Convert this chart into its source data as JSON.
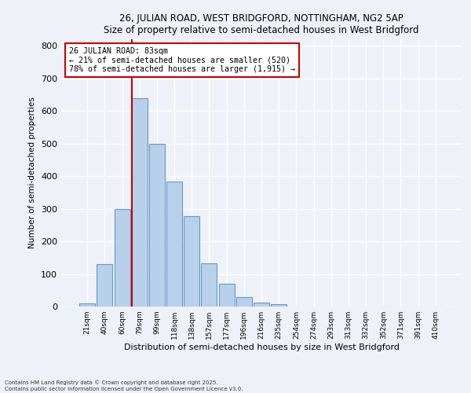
{
  "title": "26, JULIAN ROAD, WEST BRIDGFORD, NOTTINGHAM, NG2 5AP",
  "subtitle": "Size of property relative to semi-detached houses in West Bridgford",
  "xlabel": "Distribution of semi-detached houses by size in West Bridgford",
  "ylabel": "Number of semi-detached properties",
  "categories": [
    "21sqm",
    "40sqm",
    "60sqm",
    "79sqm",
    "99sqm",
    "118sqm",
    "138sqm",
    "157sqm",
    "177sqm",
    "196sqm",
    "216sqm",
    "235sqm",
    "254sqm",
    "274sqm",
    "293sqm",
    "313sqm",
    "332sqm",
    "352sqm",
    "371sqm",
    "391sqm",
    "410sqm"
  ],
  "values": [
    10,
    130,
    300,
    640,
    500,
    383,
    278,
    133,
    70,
    28,
    12,
    7,
    0,
    0,
    0,
    0,
    0,
    0,
    0,
    0,
    0
  ],
  "bar_color": "#b8d0ea",
  "bar_edge_color": "#6699cc",
  "property_label": "26 JULIAN ROAD: 83sqm",
  "annotation_line1": "← 21% of semi-detached houses are smaller (520)",
  "annotation_line2": "78% of semi-detached houses are larger (1,915) →",
  "red_line_color": "#cc0000",
  "annotation_box_color": "#ffffff",
  "annotation_box_edge": "#cc0000",
  "ylim": [
    0,
    820
  ],
  "yticks": [
    0,
    100,
    200,
    300,
    400,
    500,
    600,
    700,
    800
  ],
  "background_color": "#eef2f8",
  "grid_color": "#ffffff",
  "footer_line1": "Contains HM Land Registry data © Crown copyright and database right 2025.",
  "footer_line2": "Contains public sector information licensed under the Open Government Licence v3.0."
}
